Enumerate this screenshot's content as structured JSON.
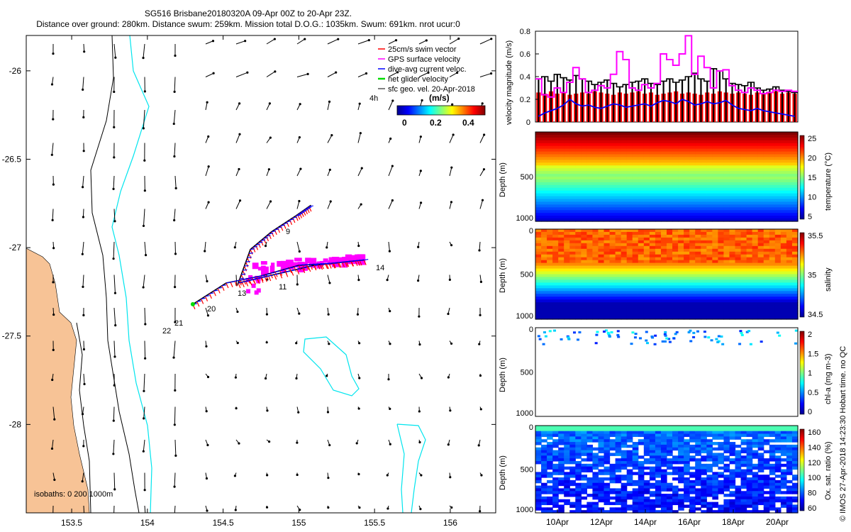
{
  "header": {
    "line1": "SG516 Brisbane20180320A 09-Apr 00Z to 20-Apr 23Z.",
    "line2": "Distance over ground: 280km. Distance swum: 259km. Mission total D.O.G.: 1035km. Swum: 691km. nrot ucur:0"
  },
  "colors": {
    "land": "#f7c396",
    "swim": "#ff0000",
    "gps": "#ff00ff",
    "current": "#0000ff",
    "net": "#00dd00",
    "iso200": "#000000",
    "iso1000": "#00e5ee"
  },
  "map": {
    "xlim": [
      153.2,
      156.3
    ],
    "ylim": [
      -28.5,
      -25.8
    ],
    "xticks": [
      153.5,
      154,
      154.5,
      155,
      155.5,
      156
    ],
    "xtick_labels": [
      "153.5",
      "154",
      "154.5",
      "155",
      "155.5",
      "156"
    ],
    "yticks": [
      -26,
      -26.5,
      -27,
      -27.5,
      -28
    ],
    "ytick_labels": [
      "-26",
      "-26.5",
      "-27",
      "-27.5",
      "-28"
    ],
    "legend": [
      "25cm/s swim vector",
      "GPS surface velocity",
      "dive-avg current veloc.",
      "net glider velocity",
      "sfc geo. vel. 20-Apr-2018"
    ],
    "ref_label": "4h",
    "colorbar": {
      "title": "(m/s)",
      "range": [
        0,
        0.5
      ],
      "ticks": [
        "0",
        "0.2",
        "0.4"
      ]
    },
    "isobaths_label": "isobaths: 0   200  1000m",
    "day_labels": [
      "9",
      "13",
      "11",
      "14",
      "20",
      "21",
      "22"
    ],
    "track": [
      [
        154.3,
        -27.32
      ],
      [
        154.52,
        -27.2
      ],
      [
        154.75,
        -27.16
      ],
      [
        155.0,
        -27.1
      ],
      [
        155.2,
        -27.09
      ],
      [
        155.43,
        -27.07
      ],
      [
        155.1,
        -27.1
      ],
      [
        154.8,
        -27.16
      ],
      [
        154.6,
        -27.2
      ],
      [
        154.68,
        -27.01
      ],
      [
        154.82,
        -26.91
      ],
      [
        154.98,
        -26.82
      ],
      [
        155.08,
        -26.76
      ]
    ]
  },
  "panels": {
    "velocity": {
      "ylabel": "velocity magnitude (m/s)",
      "ylim": [
        0,
        0.8
      ],
      "ticks": [
        "0",
        "0.2",
        "0.4",
        "0.6",
        "0.8"
      ],
      "swim": [
        0.26,
        0.25,
        0.27,
        0.25,
        0.26,
        0.24,
        0.25,
        0.26,
        0.25,
        0.27,
        0.26,
        0.25,
        0.24,
        0.26,
        0.25,
        0.26,
        0.27,
        0.25,
        0.26,
        0.24,
        0.25,
        0.26,
        0.27,
        0.25,
        0.26,
        0.25,
        0.24,
        0.26,
        0.25,
        0.27,
        0.26,
        0.25,
        0.26,
        0.25,
        0.24,
        0.26,
        0.25,
        0.26,
        0.27,
        0.25,
        0.26,
        0.25
      ],
      "net": [
        0.38,
        0.4,
        0.36,
        0.42,
        0.39,
        0.37,
        0.41,
        0.38,
        0.36,
        0.33,
        0.35,
        0.37,
        0.34,
        0.31,
        0.33,
        0.35,
        0.36,
        0.38,
        0.34,
        0.33,
        0.36,
        0.38,
        0.35,
        0.37,
        0.4,
        0.43,
        0.38,
        0.36,
        0.47,
        0.45,
        0.38,
        0.34,
        0.33,
        0.32,
        0.35,
        0.3,
        0.28,
        0.29,
        0.31,
        0.28,
        0.27,
        0.26
      ],
      "gps": [
        0.38,
        0.24,
        0.22,
        0.3,
        0.26,
        0.35,
        0.48,
        0.38,
        0.26,
        0.28,
        0.32,
        0.3,
        0.42,
        0.62,
        0.55,
        0.3,
        0.28,
        0.33,
        0.3,
        0.34,
        0.6,
        0.55,
        0.5,
        0.6,
        0.76,
        0.42,
        0.58,
        0.48,
        0.3,
        0.45,
        0.46,
        0.32,
        0.28,
        0.26,
        0.3,
        0.28,
        0.25,
        0.26,
        0.28,
        0.27,
        0.28,
        0.27
      ],
      "current": [
        0.05,
        0.08,
        0.1,
        0.12,
        0.15,
        0.2,
        0.16,
        0.14,
        0.15,
        0.13,
        0.12,
        0.14,
        0.16,
        0.15,
        0.13,
        0.14,
        0.15,
        0.16,
        0.14,
        0.17,
        0.19,
        0.18,
        0.16,
        0.2,
        0.18,
        0.15,
        0.16,
        0.18,
        0.16,
        0.17,
        0.19,
        0.15,
        0.12,
        0.11,
        0.1,
        0.12,
        0.1,
        0.09,
        0.08,
        0.07,
        0.06,
        0.05
      ]
    },
    "temperature": {
      "ylabel": "Depth (m)",
      "cbar_label": "temperature (°C)",
      "crange": [
        5,
        27
      ],
      "cticks": [
        "25",
        "20",
        "15",
        "10",
        "5"
      ],
      "depth_ticks": [
        "500",
        "1000"
      ]
    },
    "salinity": {
      "ylabel": "Depth (m)",
      "cbar_label": "salinity",
      "crange": [
        34.35,
        35.75
      ],
      "cticks": [
        "35.5",
        "35",
        "34.5"
      ],
      "depth_ticks": [
        "0",
        "500",
        "1000"
      ]
    },
    "chla": {
      "ylabel": "Depth (m)",
      "cbar_label": "chl-a (mg m-3)",
      "crange": [
        0,
        2
      ],
      "cticks": [
        "2",
        "1.5",
        "1",
        "0.5",
        "0"
      ],
      "depth_ticks": [
        "0",
        "500",
        "1000"
      ]
    },
    "oxygen": {
      "ylabel": "Depth (m)",
      "cbar_label": "Ox. sat. ratio (%)",
      "crange": [
        60,
        165
      ],
      "cticks": [
        "160",
        "140",
        "120",
        "100",
        "80",
        "60"
      ],
      "depth_ticks": [
        "0",
        "500",
        "1000"
      ]
    },
    "time_ticks": [
      "10Apr",
      "12Apr",
      "14Apr",
      "16Apr",
      "18Apr",
      "20Apr"
    ]
  },
  "footer": {
    "credit": "© IMOS 27-Apr-2018 14:23:30 Hobart time. no QC"
  }
}
